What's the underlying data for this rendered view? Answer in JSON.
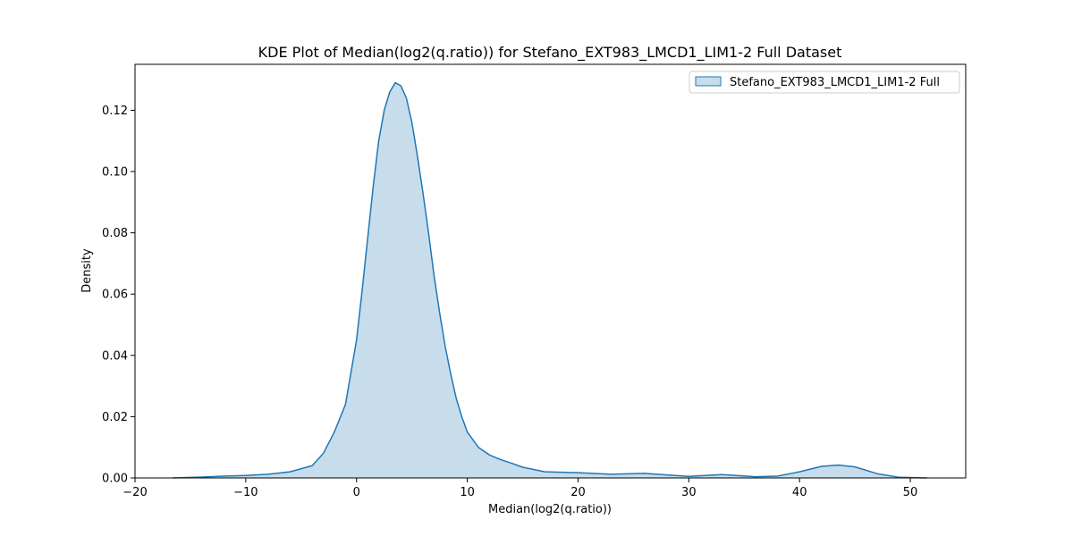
{
  "chart_data": {
    "type": "area",
    "title": "KDE Plot of Median(log2(q.ratio)) for Stefano_EXT983_LMCD1_LIM1-2 Full Dataset",
    "xlabel": "Median(log2(q.ratio))",
    "ylabel": "Density",
    "xlim": [
      -20,
      55
    ],
    "ylim": [
      0,
      0.135
    ],
    "xticks": [
      -20,
      -10,
      0,
      10,
      20,
      30,
      40,
      50
    ],
    "xtick_labels": [
      "−20",
      "−10",
      "0",
      "10",
      "20",
      "30",
      "40",
      "50"
    ],
    "yticks": [
      0,
      0.02,
      0.04,
      0.06,
      0.08,
      0.1,
      0.12
    ],
    "ytick_labels": [
      "0.00",
      "0.02",
      "0.04",
      "0.06",
      "0.08",
      "0.10",
      "0.12"
    ],
    "legend_position": "top-right",
    "grid": false,
    "series": [
      {
        "name": "Stefano_EXT983_LMCD1_LIM1-2 Full",
        "line_color": "#1f77b4",
        "fill_color": "#1f77b4",
        "fill_opacity": 0.25,
        "x": [
          -16.6,
          -14,
          -12,
          -10,
          -8,
          -6,
          -4,
          -3,
          -2,
          -1,
          0,
          0.5,
          1,
          1.5,
          2,
          2.5,
          3,
          3.5,
          4,
          4.5,
          5,
          5.5,
          6,
          6.5,
          7,
          7.5,
          8,
          8.5,
          9,
          9.5,
          10,
          11,
          12,
          13,
          14,
          15,
          17,
          20,
          23,
          26,
          28,
          30,
          33,
          36,
          38,
          40,
          42,
          43.5,
          45,
          47,
          49,
          51.5
        ],
        "y": [
          0.0,
          0.0003,
          0.0006,
          0.0008,
          0.0012,
          0.002,
          0.004,
          0.008,
          0.015,
          0.024,
          0.045,
          0.061,
          0.078,
          0.095,
          0.11,
          0.12,
          0.126,
          0.129,
          0.128,
          0.124,
          0.116,
          0.105,
          0.093,
          0.08,
          0.066,
          0.054,
          0.043,
          0.034,
          0.026,
          0.02,
          0.015,
          0.01,
          0.0075,
          0.006,
          0.0048,
          0.0035,
          0.002,
          0.0017,
          0.0012,
          0.0015,
          0.001,
          0.0005,
          0.0011,
          0.0004,
          0.0006,
          0.002,
          0.0038,
          0.0042,
          0.0036,
          0.0014,
          0.0002,
          0.0
        ]
      }
    ]
  }
}
